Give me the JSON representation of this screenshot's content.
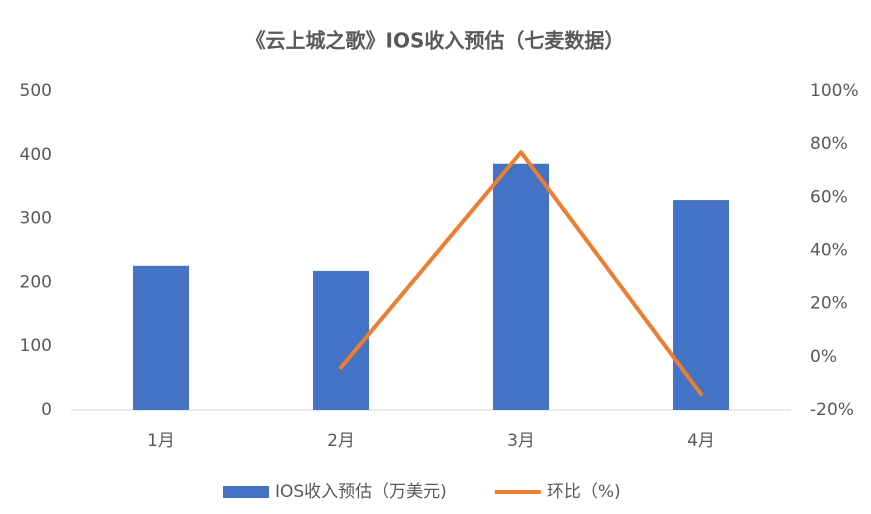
{
  "chart_data": {
    "type": "bar",
    "title": "《云上城之歌》IOS收入预估（七麦数据）",
    "categories": [
      "1月",
      "2月",
      "3月",
      "4月"
    ],
    "series": [
      {
        "name": "IOS收入预估（万美元)",
        "type": "bar",
        "color": "#4472c4",
        "values": [
          226,
          218,
          386,
          329
        ]
      },
      {
        "name": "环比（%)",
        "type": "line",
        "axis": "y2",
        "color": "#ed7d31",
        "values": [
          null,
          -4,
          77,
          -14
        ]
      }
    ],
    "ylim": [
      0,
      500
    ],
    "yticks": [
      0,
      100,
      200,
      300,
      400,
      500
    ],
    "y2lim": [
      -20,
      100
    ],
    "y2ticks": [
      {
        "value": -20,
        "label": "-20%"
      },
      {
        "value": 0,
        "label": "0%"
      },
      {
        "value": 20,
        "label": "20%"
      },
      {
        "value": 40,
        "label": "40%"
      },
      {
        "value": 60,
        "label": "60%"
      },
      {
        "value": 80,
        "label": "80%"
      },
      {
        "value": 100,
        "label": "100%"
      }
    ],
    "legend": "bottom"
  }
}
